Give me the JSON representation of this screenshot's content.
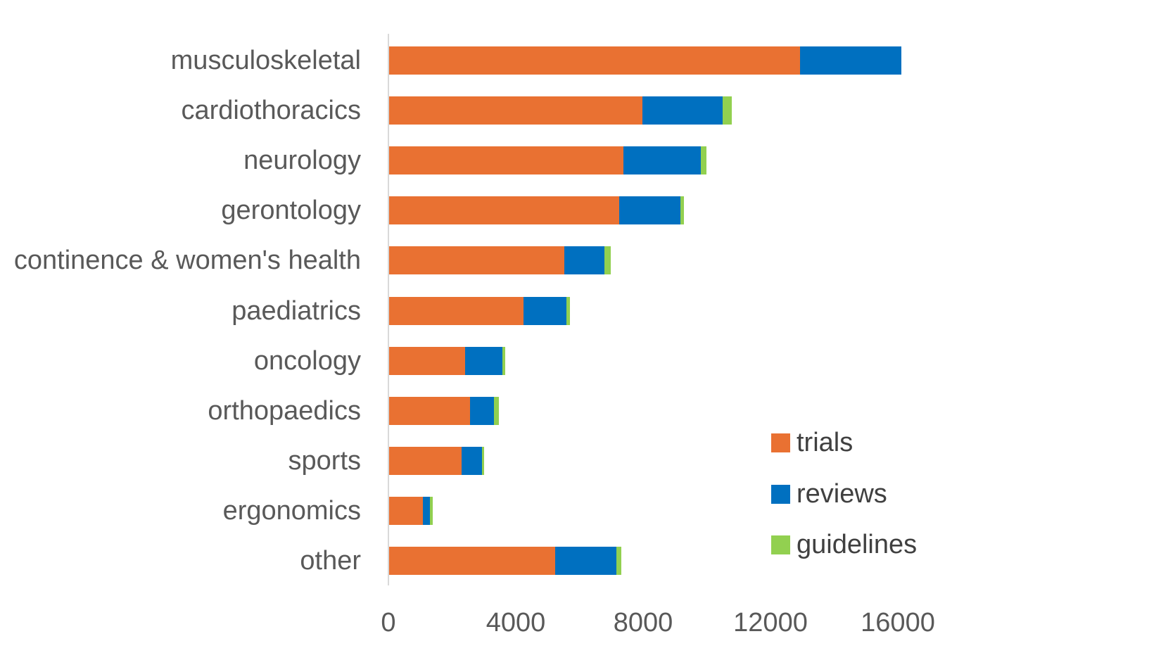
{
  "chart_data": {
    "type": "bar",
    "orientation": "horizontal",
    "stacked": true,
    "title": "",
    "xlabel": "",
    "ylabel": "",
    "categories": [
      "musculoskeletal",
      "cardiothoracics",
      "neurology",
      "gerontology",
      "continence & women's health",
      "paediatrics",
      "oncology",
      "orthopaedics",
      "sports",
      "ergonomics",
      "other"
    ],
    "series": [
      {
        "name": "trials",
        "color": "#E97132",
        "values": [
          12900,
          7950,
          7360,
          7230,
          5500,
          4230,
          2390,
          2550,
          2280,
          1060,
          5210
        ]
      },
      {
        "name": "reviews",
        "color": "#0070C0",
        "values": [
          3200,
          2520,
          2430,
          1910,
          1270,
          1340,
          1160,
          750,
          640,
          220,
          1920
        ]
      },
      {
        "name": "guidelines",
        "color": "#92D050",
        "values": [
          0,
          290,
          180,
          130,
          200,
          120,
          100,
          140,
          70,
          90,
          160
        ]
      }
    ],
    "x_ticks": [
      "0",
      "4000",
      "8000",
      "12000",
      "16000"
    ],
    "x_tick_values": [
      0,
      4000,
      8000,
      12000,
      16000
    ],
    "xlim": [
      0,
      17800
    ],
    "grid": false,
    "legend_position": "middle-right",
    "legend_entries": [
      "trials",
      "reviews",
      "guidelines"
    ]
  },
  "colors": {
    "axis_line": "#D9D9D9",
    "label_text": "#595959",
    "tick_text": "#595959",
    "legend_text": "#404040",
    "background": "#FFFFFF"
  }
}
